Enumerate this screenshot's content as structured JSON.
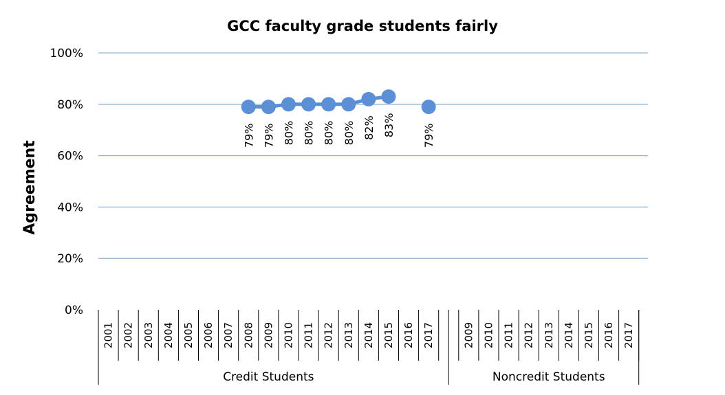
{
  "chart_data": {
    "type": "line",
    "title": "GCC faculty grade students fairly",
    "ylabel": "Agreement",
    "ylim": [
      0,
      100
    ],
    "yticks": [
      0,
      20,
      40,
      60,
      80,
      100
    ],
    "ytick_labels": [
      "0%",
      "20%",
      "40%",
      "60%",
      "80%",
      "100%"
    ],
    "grid": true,
    "groups": [
      {
        "label": "Credit Students",
        "categories": [
          "2001",
          "2002",
          "2003",
          "2004",
          "2005",
          "2006",
          "2007",
          "2008",
          "2009",
          "2010",
          "2011",
          "2012",
          "2013",
          "2014",
          "2015",
          "2016",
          "2017"
        ],
        "values": [
          null,
          null,
          null,
          null,
          null,
          null,
          null,
          79,
          79,
          80,
          80,
          80,
          80,
          82,
          83,
          null,
          79
        ],
        "labels": [
          "",
          "",
          "",
          "",
          "",
          "",
          "",
          "79%",
          "79%",
          "80%",
          "80%",
          "80%",
          "80%",
          "82%",
          "83%",
          "",
          "79%"
        ]
      },
      {
        "label": "Noncredit Students",
        "categories": [
          "2009",
          "2010",
          "2011",
          "2012",
          "2013",
          "2014",
          "2015",
          "2016",
          "2017"
        ],
        "values": [
          null,
          null,
          null,
          null,
          null,
          null,
          null,
          null,
          null
        ],
        "labels": [
          "",
          "",
          "",
          "",
          "",
          "",
          "",
          "",
          ""
        ]
      }
    ],
    "colors": {
      "series": "#5b8fd6",
      "grid": "#8eb4d8"
    }
  }
}
